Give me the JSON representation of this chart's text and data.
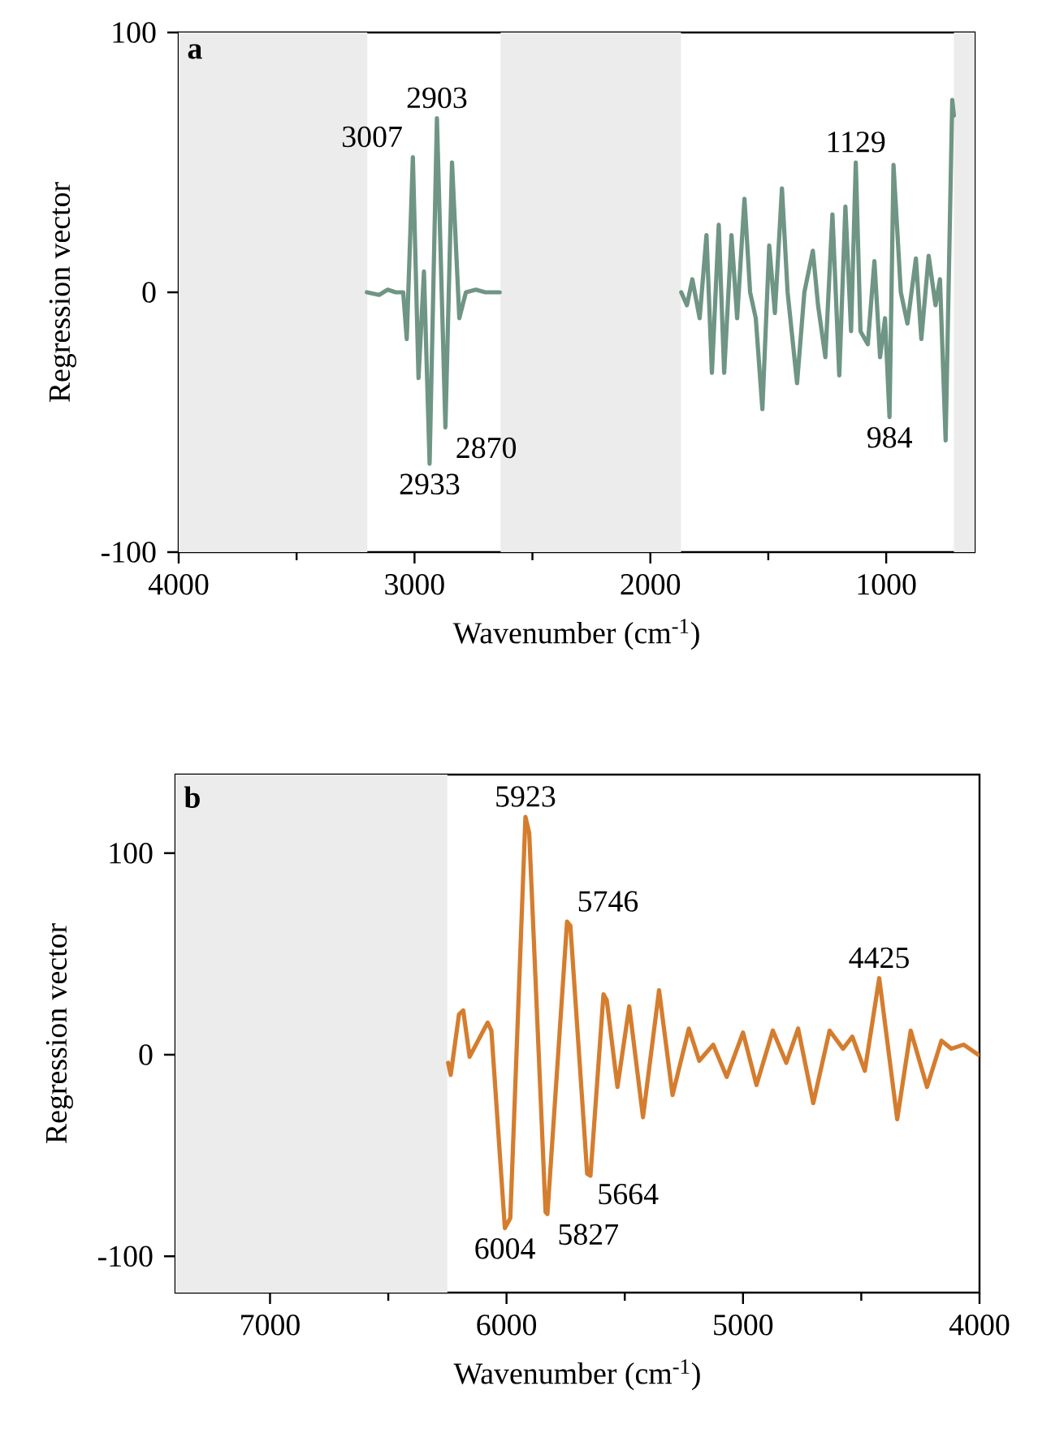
{
  "chart_data": [
    {
      "type": "line",
      "title": "a",
      "xlabel": "Wavenumber (cm$^{-1}$)",
      "ylabel": "Regression vector",
      "xlim": [
        4000,
        625
      ],
      "ylim": [
        -100,
        100
      ],
      "xticks": [
        4000,
        3000,
        2000,
        1000
      ],
      "yticks": [
        -100,
        0,
        100
      ],
      "bands": [
        {
          "axis": "x",
          "from": 4000,
          "to": 3200,
          "color": "#ececec"
        },
        {
          "axis": "x",
          "from": 2635,
          "to": 1870,
          "color": "#ececec"
        },
        {
          "axis": "x",
          "from": 713,
          "to": 625,
          "color": "#ececec"
        }
      ],
      "series": [
        {
          "color": "#6f9585",
          "x": [
            3202,
            3150,
            3114,
            3080,
            3048,
            3033,
            3007,
            2983,
            2960,
            2936,
            2905,
            2869,
            2841,
            2810,
            2782,
            2740,
            2700,
            2639
          ],
          "values": [
            0,
            -1,
            1,
            0,
            0,
            -18,
            52,
            -33,
            8,
            -66,
            67,
            -52,
            50,
            -10,
            0,
            1,
            0,
            0
          ]
        },
        {
          "color": "#6f9585",
          "x": [
            1869,
            1845,
            1822,
            1791,
            1762,
            1739,
            1710,
            1687,
            1656,
            1632,
            1601,
            1577,
            1553,
            1525,
            1496,
            1472,
            1442,
            1418,
            1378,
            1347,
            1311,
            1289,
            1258,
            1228,
            1199,
            1173,
            1149,
            1129,
            1109,
            1078,
            1050,
            1026,
            1005,
            986,
            969,
            938,
            910,
            874,
            851,
            820,
            791,
            772,
            748,
            720,
            713
          ],
          "values": [
            0,
            -5,
            5,
            -10,
            22,
            -31,
            26,
            -31,
            22,
            -10,
            36,
            0,
            -10,
            -45,
            18,
            -8,
            40,
            0,
            -35,
            0,
            16,
            -5,
            -25,
            30,
            -32,
            33,
            -15,
            50,
            -15,
            -20,
            12,
            -25,
            -10,
            -48,
            49,
            0,
            -12,
            13,
            -18,
            14,
            -5,
            5,
            -57,
            74,
            68
          ]
        }
      ],
      "annotations": [
        {
          "text": "3007",
          "x": 3007,
          "y": 52
        },
        {
          "text": "2903",
          "x": 2905,
          "y": 67
        },
        {
          "text": "2933",
          "x": 2936,
          "y": -66
        },
        {
          "text": "2870",
          "x": 2869,
          "y": -52
        },
        {
          "text": "1129",
          "x": 1129,
          "y": 50
        },
        {
          "text": "984",
          "x": 986,
          "y": -48
        }
      ]
    },
    {
      "type": "line",
      "title": "b",
      "xlabel": "Wavenumber (cm$^{-1}$)",
      "ylabel": "Regression vector",
      "xlim": [
        7400,
        4000
      ],
      "ylim": [
        -118,
        139
      ],
      "xticks": [
        7000,
        6000,
        5000,
        4000
      ],
      "yticks": [
        -100,
        0,
        100
      ],
      "bands": [
        {
          "axis": "x",
          "from": 7400,
          "to": 6250,
          "color": "#ececec"
        }
      ],
      "series": [
        {
          "color": "#d57d2e",
          "x": [
            6247,
            6236,
            6201,
            6183,
            6156,
            6080,
            6064,
            6007,
            5984,
            5920,
            5904,
            5835,
            5827,
            5744,
            5730,
            5659,
            5645,
            5590,
            5576,
            5531,
            5481,
            5423,
            5355,
            5298,
            5229,
            5185,
            5126,
            5069,
            5000,
            4943,
            4874,
            4817,
            4767,
            4703,
            4634,
            4577,
            4538,
            4485,
            4424,
            4348,
            4291,
            4222,
            4161,
            4119,
            4067,
            4005
          ],
          "values": [
            -4,
            -10,
            20,
            22,
            -1,
            16,
            12,
            -86,
            -81,
            118,
            110,
            -78,
            -79,
            66,
            64,
            -59,
            -60,
            30,
            27,
            -16,
            24,
            -31,
            32,
            -20,
            13,
            -3,
            5,
            -11,
            11,
            -15,
            12,
            -4,
            13,
            -24,
            12,
            3,
            9,
            -8,
            38,
            -32,
            12,
            -16,
            7,
            3,
            5,
            0
          ]
        }
      ],
      "annotations": [
        {
          "text": "5923",
          "x": 5920,
          "y": 118
        },
        {
          "text": "5746",
          "x": 5744,
          "y": 66
        },
        {
          "text": "4425",
          "x": 4424,
          "y": 38
        },
        {
          "text": "6004",
          "x": 6007,
          "y": -86
        },
        {
          "text": "5827",
          "x": 5827,
          "y": -79
        },
        {
          "text": "5664",
          "x": 5659,
          "y": -59
        }
      ]
    }
  ]
}
